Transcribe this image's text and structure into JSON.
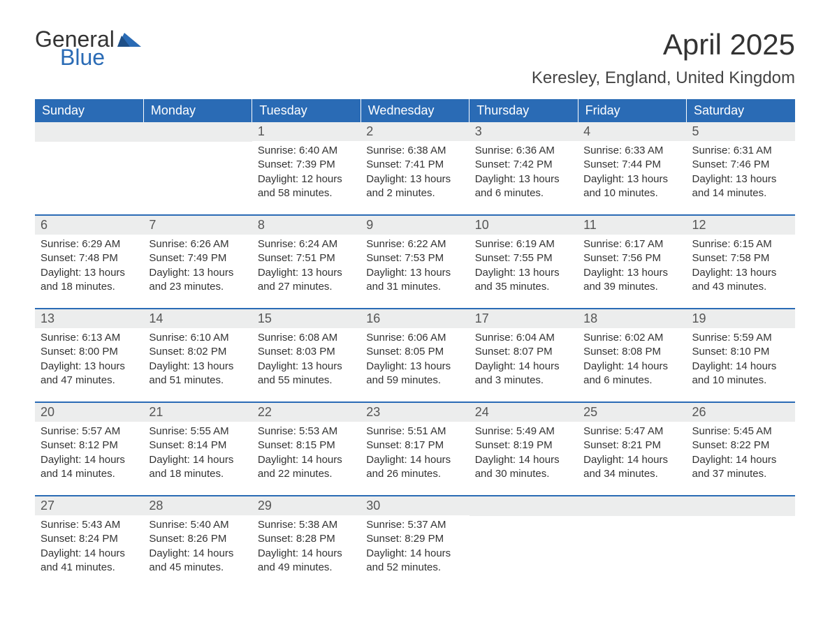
{
  "brand": {
    "line1": "General",
    "line2": "Blue",
    "flag_color": "#2a6bb5"
  },
  "title": "April 2025",
  "location": "Keresley, England, United Kingdom",
  "colors": {
    "header_bg": "#2a6bb5",
    "header_text": "#ffffff",
    "daynum_bg": "#eceded",
    "text": "#333333"
  },
  "typography": {
    "title_fontsize": 42,
    "location_fontsize": 24,
    "dayheader_fontsize": 18,
    "body_fontsize": 15
  },
  "day_headers": [
    "Sunday",
    "Monday",
    "Tuesday",
    "Wednesday",
    "Thursday",
    "Friday",
    "Saturday"
  ],
  "weeks": [
    [
      null,
      null,
      {
        "n": "1",
        "sunrise": "Sunrise: 6:40 AM",
        "sunset": "Sunset: 7:39 PM",
        "daylight": "Daylight: 12 hours and 58 minutes."
      },
      {
        "n": "2",
        "sunrise": "Sunrise: 6:38 AM",
        "sunset": "Sunset: 7:41 PM",
        "daylight": "Daylight: 13 hours and 2 minutes."
      },
      {
        "n": "3",
        "sunrise": "Sunrise: 6:36 AM",
        "sunset": "Sunset: 7:42 PM",
        "daylight": "Daylight: 13 hours and 6 minutes."
      },
      {
        "n": "4",
        "sunrise": "Sunrise: 6:33 AM",
        "sunset": "Sunset: 7:44 PM",
        "daylight": "Daylight: 13 hours and 10 minutes."
      },
      {
        "n": "5",
        "sunrise": "Sunrise: 6:31 AM",
        "sunset": "Sunset: 7:46 PM",
        "daylight": "Daylight: 13 hours and 14 minutes."
      }
    ],
    [
      {
        "n": "6",
        "sunrise": "Sunrise: 6:29 AM",
        "sunset": "Sunset: 7:48 PM",
        "daylight": "Daylight: 13 hours and 18 minutes."
      },
      {
        "n": "7",
        "sunrise": "Sunrise: 6:26 AM",
        "sunset": "Sunset: 7:49 PM",
        "daylight": "Daylight: 13 hours and 23 minutes."
      },
      {
        "n": "8",
        "sunrise": "Sunrise: 6:24 AM",
        "sunset": "Sunset: 7:51 PM",
        "daylight": "Daylight: 13 hours and 27 minutes."
      },
      {
        "n": "9",
        "sunrise": "Sunrise: 6:22 AM",
        "sunset": "Sunset: 7:53 PM",
        "daylight": "Daylight: 13 hours and 31 minutes."
      },
      {
        "n": "10",
        "sunrise": "Sunrise: 6:19 AM",
        "sunset": "Sunset: 7:55 PM",
        "daylight": "Daylight: 13 hours and 35 minutes."
      },
      {
        "n": "11",
        "sunrise": "Sunrise: 6:17 AM",
        "sunset": "Sunset: 7:56 PM",
        "daylight": "Daylight: 13 hours and 39 minutes."
      },
      {
        "n": "12",
        "sunrise": "Sunrise: 6:15 AM",
        "sunset": "Sunset: 7:58 PM",
        "daylight": "Daylight: 13 hours and 43 minutes."
      }
    ],
    [
      {
        "n": "13",
        "sunrise": "Sunrise: 6:13 AM",
        "sunset": "Sunset: 8:00 PM",
        "daylight": "Daylight: 13 hours and 47 minutes."
      },
      {
        "n": "14",
        "sunrise": "Sunrise: 6:10 AM",
        "sunset": "Sunset: 8:02 PM",
        "daylight": "Daylight: 13 hours and 51 minutes."
      },
      {
        "n": "15",
        "sunrise": "Sunrise: 6:08 AM",
        "sunset": "Sunset: 8:03 PM",
        "daylight": "Daylight: 13 hours and 55 minutes."
      },
      {
        "n": "16",
        "sunrise": "Sunrise: 6:06 AM",
        "sunset": "Sunset: 8:05 PM",
        "daylight": "Daylight: 13 hours and 59 minutes."
      },
      {
        "n": "17",
        "sunrise": "Sunrise: 6:04 AM",
        "sunset": "Sunset: 8:07 PM",
        "daylight": "Daylight: 14 hours and 3 minutes."
      },
      {
        "n": "18",
        "sunrise": "Sunrise: 6:02 AM",
        "sunset": "Sunset: 8:08 PM",
        "daylight": "Daylight: 14 hours and 6 minutes."
      },
      {
        "n": "19",
        "sunrise": "Sunrise: 5:59 AM",
        "sunset": "Sunset: 8:10 PM",
        "daylight": "Daylight: 14 hours and 10 minutes."
      }
    ],
    [
      {
        "n": "20",
        "sunrise": "Sunrise: 5:57 AM",
        "sunset": "Sunset: 8:12 PM",
        "daylight": "Daylight: 14 hours and 14 minutes."
      },
      {
        "n": "21",
        "sunrise": "Sunrise: 5:55 AM",
        "sunset": "Sunset: 8:14 PM",
        "daylight": "Daylight: 14 hours and 18 minutes."
      },
      {
        "n": "22",
        "sunrise": "Sunrise: 5:53 AM",
        "sunset": "Sunset: 8:15 PM",
        "daylight": "Daylight: 14 hours and 22 minutes."
      },
      {
        "n": "23",
        "sunrise": "Sunrise: 5:51 AM",
        "sunset": "Sunset: 8:17 PM",
        "daylight": "Daylight: 14 hours and 26 minutes."
      },
      {
        "n": "24",
        "sunrise": "Sunrise: 5:49 AM",
        "sunset": "Sunset: 8:19 PM",
        "daylight": "Daylight: 14 hours and 30 minutes."
      },
      {
        "n": "25",
        "sunrise": "Sunrise: 5:47 AM",
        "sunset": "Sunset: 8:21 PM",
        "daylight": "Daylight: 14 hours and 34 minutes."
      },
      {
        "n": "26",
        "sunrise": "Sunrise: 5:45 AM",
        "sunset": "Sunset: 8:22 PM",
        "daylight": "Daylight: 14 hours and 37 minutes."
      }
    ],
    [
      {
        "n": "27",
        "sunrise": "Sunrise: 5:43 AM",
        "sunset": "Sunset: 8:24 PM",
        "daylight": "Daylight: 14 hours and 41 minutes."
      },
      {
        "n": "28",
        "sunrise": "Sunrise: 5:40 AM",
        "sunset": "Sunset: 8:26 PM",
        "daylight": "Daylight: 14 hours and 45 minutes."
      },
      {
        "n": "29",
        "sunrise": "Sunrise: 5:38 AM",
        "sunset": "Sunset: 8:28 PM",
        "daylight": "Daylight: 14 hours and 49 minutes."
      },
      {
        "n": "30",
        "sunrise": "Sunrise: 5:37 AM",
        "sunset": "Sunset: 8:29 PM",
        "daylight": "Daylight: 14 hours and 52 minutes."
      },
      null,
      null,
      null
    ]
  ]
}
